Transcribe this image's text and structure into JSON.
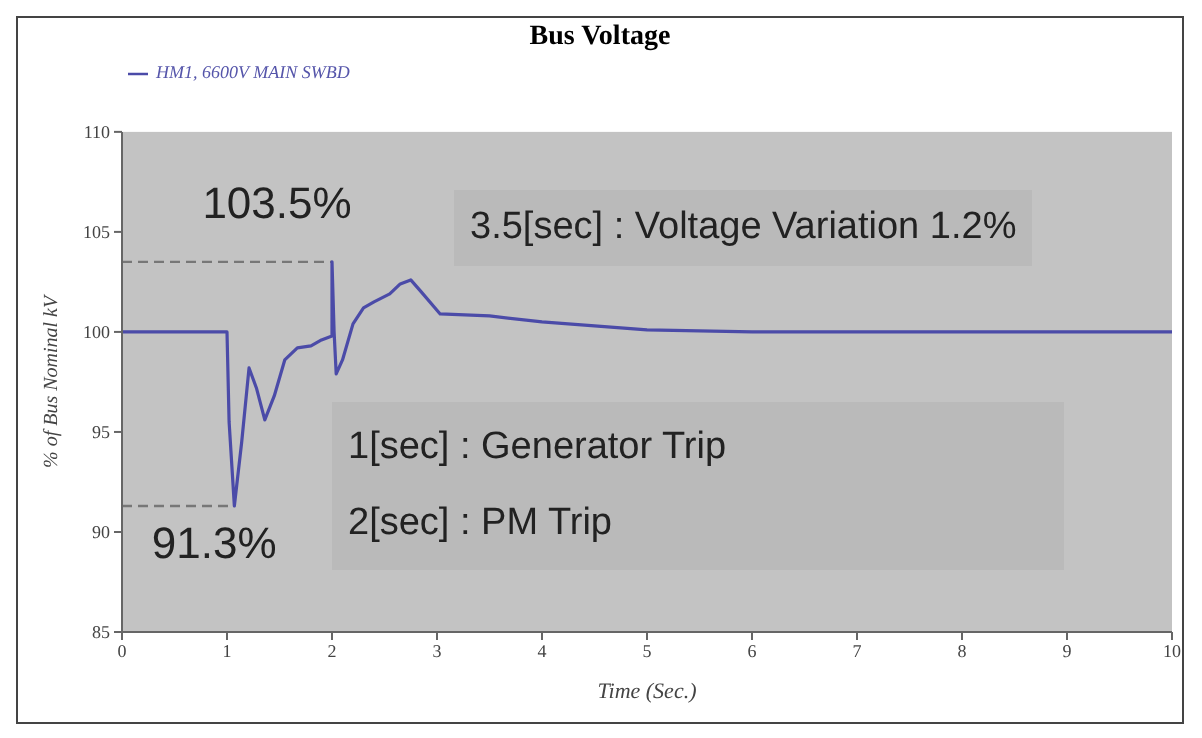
{
  "chart_data": {
    "type": "line",
    "title": "Bus Voltage",
    "xlabel": "Time (Sec.)",
    "ylabel": "% of Bus Nominal kV",
    "x": [
      0,
      1,
      1.02,
      1.07,
      1.14,
      1.21,
      1.28,
      1.36,
      1.45,
      1.55,
      1.67,
      1.8,
      1.9,
      2.0,
      2.0,
      2.02,
      2.04,
      2.1,
      2.2,
      2.3,
      2.4,
      2.55,
      2.65,
      2.75,
      2.85,
      3.03,
      3.5,
      4.0,
      4.5,
      5.0,
      6.0,
      7.0,
      8.0,
      9.0,
      10.0
    ],
    "series": [
      {
        "name": "HM1, 6600V MAIN SWBD",
        "color": "#4b4ba8",
        "values": [
          100,
          100,
          95.5,
          91.3,
          94.5,
          98.2,
          97.2,
          95.6,
          96.8,
          98.6,
          99.2,
          99.3,
          99.6,
          99.8,
          103.5,
          100,
          97.9,
          98.6,
          100.4,
          101.2,
          101.5,
          101.9,
          102.4,
          102.6,
          102.0,
          100.9,
          100.8,
          100.5,
          100.3,
          100.1,
          100,
          100,
          100,
          100,
          100
        ]
      }
    ],
    "xlim": [
      0,
      10
    ],
    "xticks": [
      0,
      1,
      2,
      3,
      4,
      5,
      6,
      7,
      8,
      9,
      10
    ],
    "ylim": [
      85,
      110
    ],
    "yticks": [
      85,
      90,
      95,
      100,
      105,
      110
    ],
    "ref_lines": [
      {
        "axis": "y",
        "value": 103.5,
        "label": "103.5%",
        "line_style": "dashed",
        "color": "#777777"
      },
      {
        "axis": "y",
        "value": 91.3,
        "label": "91.3%",
        "line_style": "dashed",
        "color": "#777777"
      }
    ],
    "annotations": [
      "3.5[sec] : Voltage Variation 1.2%",
      "1[sec] : Generator Trip",
      "2[sec] : PM Trip"
    ],
    "legend": "top left",
    "grid": false,
    "marker": "none",
    "line_style": "solid"
  }
}
